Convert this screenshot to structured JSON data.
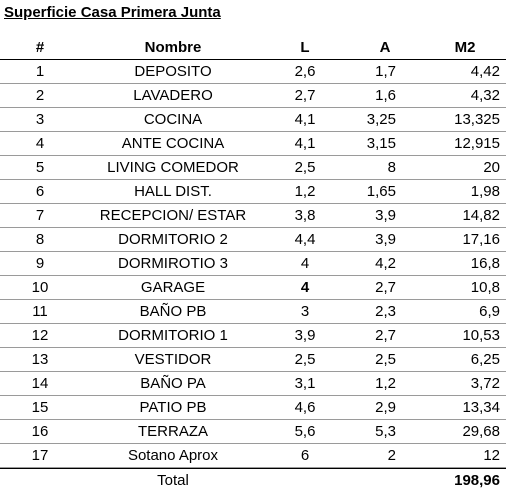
{
  "title": "Superficie Casa Primera Junta",
  "table": {
    "header": [
      "#",
      "Nombre",
      "L",
      "A",
      "M2"
    ],
    "rows": [
      [
        "1",
        "DEPOSITO",
        "2,6",
        "1,7",
        "4,42"
      ],
      [
        "2",
        "LAVADERO",
        "2,7",
        "1,6",
        "4,32"
      ],
      [
        "3",
        "COCINA",
        "4,1",
        "3,25",
        "13,325"
      ],
      [
        "4",
        "ANTE COCINA",
        "4,1",
        "3,15",
        "12,915"
      ],
      [
        "5",
        "LIVING COMEDOR",
        "2,5",
        "8",
        "20"
      ],
      [
        "6",
        "HALL DIST.",
        "1,2",
        "1,65",
        "1,98"
      ],
      [
        "7",
        "RECEPCION/ ESTAR",
        "3,8",
        "3,9",
        "14,82"
      ],
      [
        "8",
        "DORMITORIO 2",
        "4,4",
        "3,9",
        "17,16"
      ],
      [
        "9",
        "DORMIROTIO 3",
        "4",
        "4,2",
        "16,8"
      ],
      [
        "10",
        "GARAGE",
        "4",
        "2,7",
        "10,8"
      ],
      [
        "11",
        "BAÑO PB",
        "3",
        "2,3",
        "6,9"
      ],
      [
        "12",
        "DORMITORIO 1",
        "3,9",
        "2,7",
        "10,53"
      ],
      [
        "13",
        "VESTIDOR",
        "2,5",
        "2,5",
        "6,25"
      ],
      [
        "14",
        "BAÑO PA",
        "3,1",
        "1,2",
        "3,72"
      ],
      [
        "15",
        "PATIO PB",
        "4,6",
        "2,9",
        "13,34"
      ],
      [
        "16",
        "TERRAZA",
        "5,6",
        "5,3",
        "29,68"
      ],
      [
        "17",
        "Sotano Aprox",
        "6",
        "2",
        "12"
      ]
    ],
    "total": {
      "label": "Total",
      "value": "198,96"
    }
  }
}
